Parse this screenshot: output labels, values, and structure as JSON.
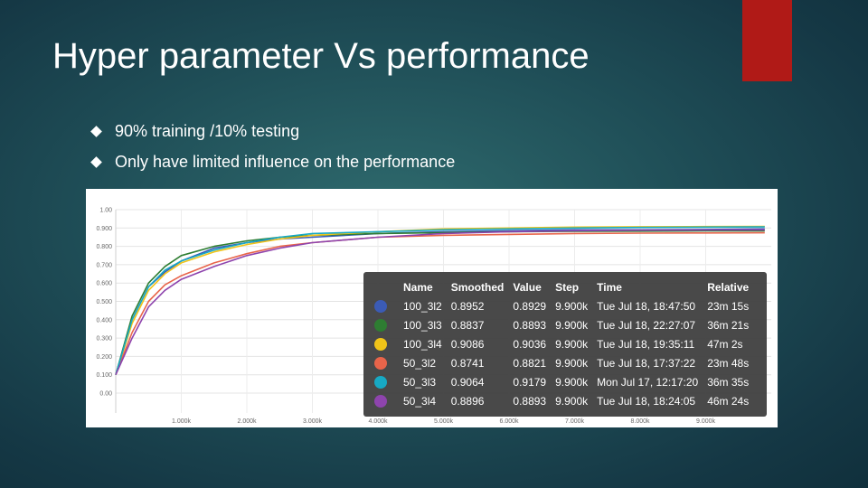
{
  "slide": {
    "title": "Hyper parameter Vs performance",
    "bullets": [
      "90% training /10% testing",
      "Only have limited influence on the performance"
    ]
  },
  "colors": {
    "accent": "#b01a17",
    "background": "#1f4e57"
  },
  "chart_data": {
    "type": "line",
    "title": "",
    "xlabel": "",
    "ylabel": "",
    "xlim": [
      0,
      10000
    ],
    "ylim": [
      0,
      1.0
    ],
    "x_tick_labels": [
      "1.000k",
      "2.000k",
      "3.000k",
      "4.000k",
      "5.000k",
      "6.000k",
      "7.000k",
      "8.000k",
      "9.000k"
    ],
    "y_tick_labels": [
      "1.00",
      "0.900",
      "0.800",
      "0.700",
      "0.600",
      "0.500",
      "0.400",
      "0.300",
      "0.200",
      "0.100",
      "0.00"
    ],
    "x": [
      0,
      250,
      500,
      750,
      1000,
      1500,
      2000,
      2500,
      3000,
      4000,
      5000,
      6000,
      7000,
      8000,
      9000,
      9900
    ],
    "series": [
      {
        "name": "100_3l2",
        "color": "#3b5bb5",
        "values": [
          0.1,
          0.4,
          0.58,
          0.66,
          0.72,
          0.79,
          0.82,
          0.84,
          0.85,
          0.87,
          0.88,
          0.885,
          0.89,
          0.89,
          0.892,
          0.895
        ]
      },
      {
        "name": "100_3l3",
        "color": "#2e7d32",
        "values": [
          0.1,
          0.42,
          0.6,
          0.69,
          0.75,
          0.8,
          0.83,
          0.85,
          0.86,
          0.87,
          0.875,
          0.88,
          0.882,
          0.883,
          0.884,
          0.884
        ]
      },
      {
        "name": "100_3l4",
        "color": "#f0c419",
        "values": [
          0.1,
          0.38,
          0.56,
          0.65,
          0.71,
          0.77,
          0.81,
          0.84,
          0.86,
          0.88,
          0.895,
          0.9,
          0.905,
          0.907,
          0.908,
          0.909
        ]
      },
      {
        "name": "50_3l2",
        "color": "#e8644a",
        "values": [
          0.1,
          0.33,
          0.5,
          0.59,
          0.64,
          0.71,
          0.76,
          0.8,
          0.82,
          0.85,
          0.86,
          0.865,
          0.87,
          0.872,
          0.873,
          0.874
        ]
      },
      {
        "name": "50_3l3",
        "color": "#17a9c4",
        "values": [
          0.1,
          0.4,
          0.58,
          0.67,
          0.72,
          0.78,
          0.82,
          0.85,
          0.87,
          0.88,
          0.89,
          0.895,
          0.9,
          0.903,
          0.905,
          0.906
        ]
      },
      {
        "name": "50_3l4",
        "color": "#8e44ad",
        "values": [
          0.1,
          0.3,
          0.47,
          0.56,
          0.62,
          0.69,
          0.75,
          0.79,
          0.82,
          0.85,
          0.87,
          0.88,
          0.885,
          0.888,
          0.889,
          0.89
        ]
      }
    ]
  },
  "tooltip": {
    "headers": [
      "Name",
      "Smoothed",
      "Value",
      "Step",
      "Time",
      "Relative"
    ],
    "rows": [
      {
        "color": "#3b5bb5",
        "name": "100_3l2",
        "smoothed": "0.8952",
        "value": "0.8929",
        "step": "9.900k",
        "time": "Tue Jul 18, 18:47:50",
        "relative": "23m 15s"
      },
      {
        "color": "#2e7d32",
        "name": "100_3l3",
        "smoothed": "0.8837",
        "value": "0.8893",
        "step": "9.900k",
        "time": "Tue Jul 18, 22:27:07",
        "relative": "36m 21s"
      },
      {
        "color": "#f0c419",
        "name": "100_3l4",
        "smoothed": "0.9086",
        "value": "0.9036",
        "step": "9.900k",
        "time": "Tue Jul 18, 19:35:11",
        "relative": "47m 2s"
      },
      {
        "color": "#e8644a",
        "name": "50_3l2",
        "smoothed": "0.8741",
        "value": "0.8821",
        "step": "9.900k",
        "time": "Tue Jul 18, 17:37:22",
        "relative": "23m 48s"
      },
      {
        "color": "#17a9c4",
        "name": "50_3l3",
        "smoothed": "0.9064",
        "value": "0.9179",
        "step": "9.900k",
        "time": "Mon Jul 17, 12:17:20",
        "relative": "36m 35s"
      },
      {
        "color": "#8e44ad",
        "name": "50_3l4",
        "smoothed": "0.8896",
        "value": "0.8893",
        "step": "9.900k",
        "time": "Tue Jul 18, 18:24:05",
        "relative": "46m 24s"
      }
    ]
  }
}
